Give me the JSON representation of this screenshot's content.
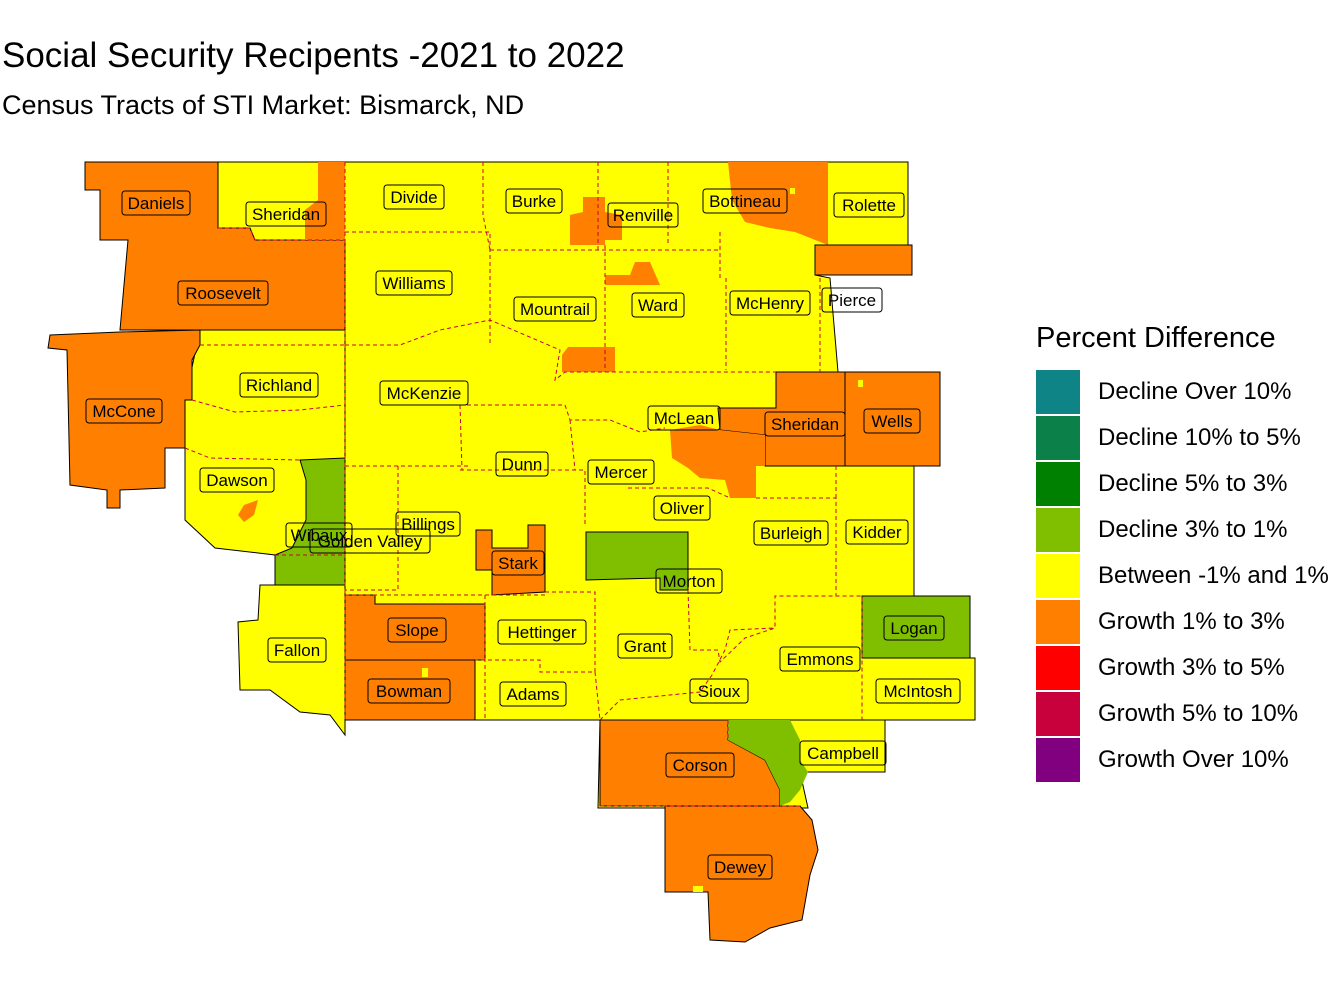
{
  "title": "Social Security Recipents -2021 to 2022",
  "subtitle": "Census Tracts of STI Market: Bismarck, ND",
  "legend": {
    "title": "Percent Difference",
    "items": [
      {
        "label": "Decline Over 10%",
        "color": "#0e8486"
      },
      {
        "label": "Decline 10% to 5%",
        "color": "#0b8048"
      },
      {
        "label": "Decline 5% to 3%",
        "color": "#008000"
      },
      {
        "label": "Decline 3% to 1%",
        "color": "#7fbf00"
      },
      {
        "label": "Between -1% and 1%",
        "color": "#ffff00"
      },
      {
        "label": "Growth 1% to 3%",
        "color": "#ff8000"
      },
      {
        "label": "Growth 3% to 5%",
        "color": "#ff0000"
      },
      {
        "label": "Growth 5% to 10%",
        "color": "#c8003c"
      },
      {
        "label": "Growth Over 10%",
        "color": "#800080"
      }
    ]
  },
  "counties": [
    {
      "name": "Daniels",
      "category": "Growth 1% to 3%"
    },
    {
      "name": "Sheridan",
      "category": "Between -1% and 1%"
    },
    {
      "name": "Roosevelt",
      "category": "Growth 1% to 3%"
    },
    {
      "name": "McCone",
      "category": "Growth 1% to 3%"
    },
    {
      "name": "Richland",
      "category": "Between -1% and 1%"
    },
    {
      "name": "Dawson",
      "category": "Between -1% and 1%"
    },
    {
      "name": "Wibaux",
      "category": "Decline 3% to 1%"
    },
    {
      "name": "Golden Valley",
      "category": "Between -1% and 1%"
    },
    {
      "name": "Fallon",
      "category": "Between -1% and 1%"
    },
    {
      "name": "Divide",
      "category": "Between -1% and 1%"
    },
    {
      "name": "Williams",
      "category": "Between -1% and 1%"
    },
    {
      "name": "McKenzie",
      "category": "Between -1% and 1%"
    },
    {
      "name": "Billings",
      "category": "Between -1% and 1%"
    },
    {
      "name": "Slope",
      "category": "Growth 1% to 3%"
    },
    {
      "name": "Bowman",
      "category": "Growth 1% to 3%"
    },
    {
      "name": "Burke",
      "category": "Between -1% and 1%"
    },
    {
      "name": "Mountrail",
      "category": "Between -1% and 1%"
    },
    {
      "name": "Dunn",
      "category": "Between -1% and 1%"
    },
    {
      "name": "Stark",
      "category": "Growth 1% to 3%"
    },
    {
      "name": "Hettinger",
      "category": "Between -1% and 1%"
    },
    {
      "name": "Adams",
      "category": "Between -1% and 1%"
    },
    {
      "name": "Renville",
      "category": "Between -1% and 1%"
    },
    {
      "name": "Ward",
      "category": "Between -1% and 1%"
    },
    {
      "name": "Bottineau",
      "category": "Between -1% and 1%"
    },
    {
      "name": "McHenry",
      "category": "Between -1% and 1%"
    },
    {
      "name": "Rolette",
      "category": "Between -1% and 1%"
    },
    {
      "name": "Pierce",
      "category": "Between -1% and 1%"
    },
    {
      "name": "McLean",
      "category": "Between -1% and 1%"
    },
    {
      "name": "Sheridan",
      "category": "Growth 1% to 3%"
    },
    {
      "name": "Wells",
      "category": "Growth 1% to 3%"
    },
    {
      "name": "Mercer",
      "category": "Between -1% and 1%"
    },
    {
      "name": "Oliver",
      "category": "Between -1% and 1%"
    },
    {
      "name": "Morton",
      "category": "Between -1% and 1%"
    },
    {
      "name": "Grant",
      "category": "Between -1% and 1%"
    },
    {
      "name": "Sioux",
      "category": "Between -1% and 1%"
    },
    {
      "name": "Burleigh",
      "category": "Between -1% and 1%"
    },
    {
      "name": "Kidder",
      "category": "Between -1% and 1%"
    },
    {
      "name": "Emmons",
      "category": "Between -1% and 1%"
    },
    {
      "name": "Logan",
      "category": "Decline 3% to 1%"
    },
    {
      "name": "McIntosh",
      "category": "Between -1% and 1%"
    },
    {
      "name": "Corson",
      "category": "Growth 1% to 3%"
    },
    {
      "name": "Campbell",
      "category": "Between -1% and 1%"
    },
    {
      "name": "Dewey",
      "category": "Growth 1% to 3%"
    }
  ]
}
